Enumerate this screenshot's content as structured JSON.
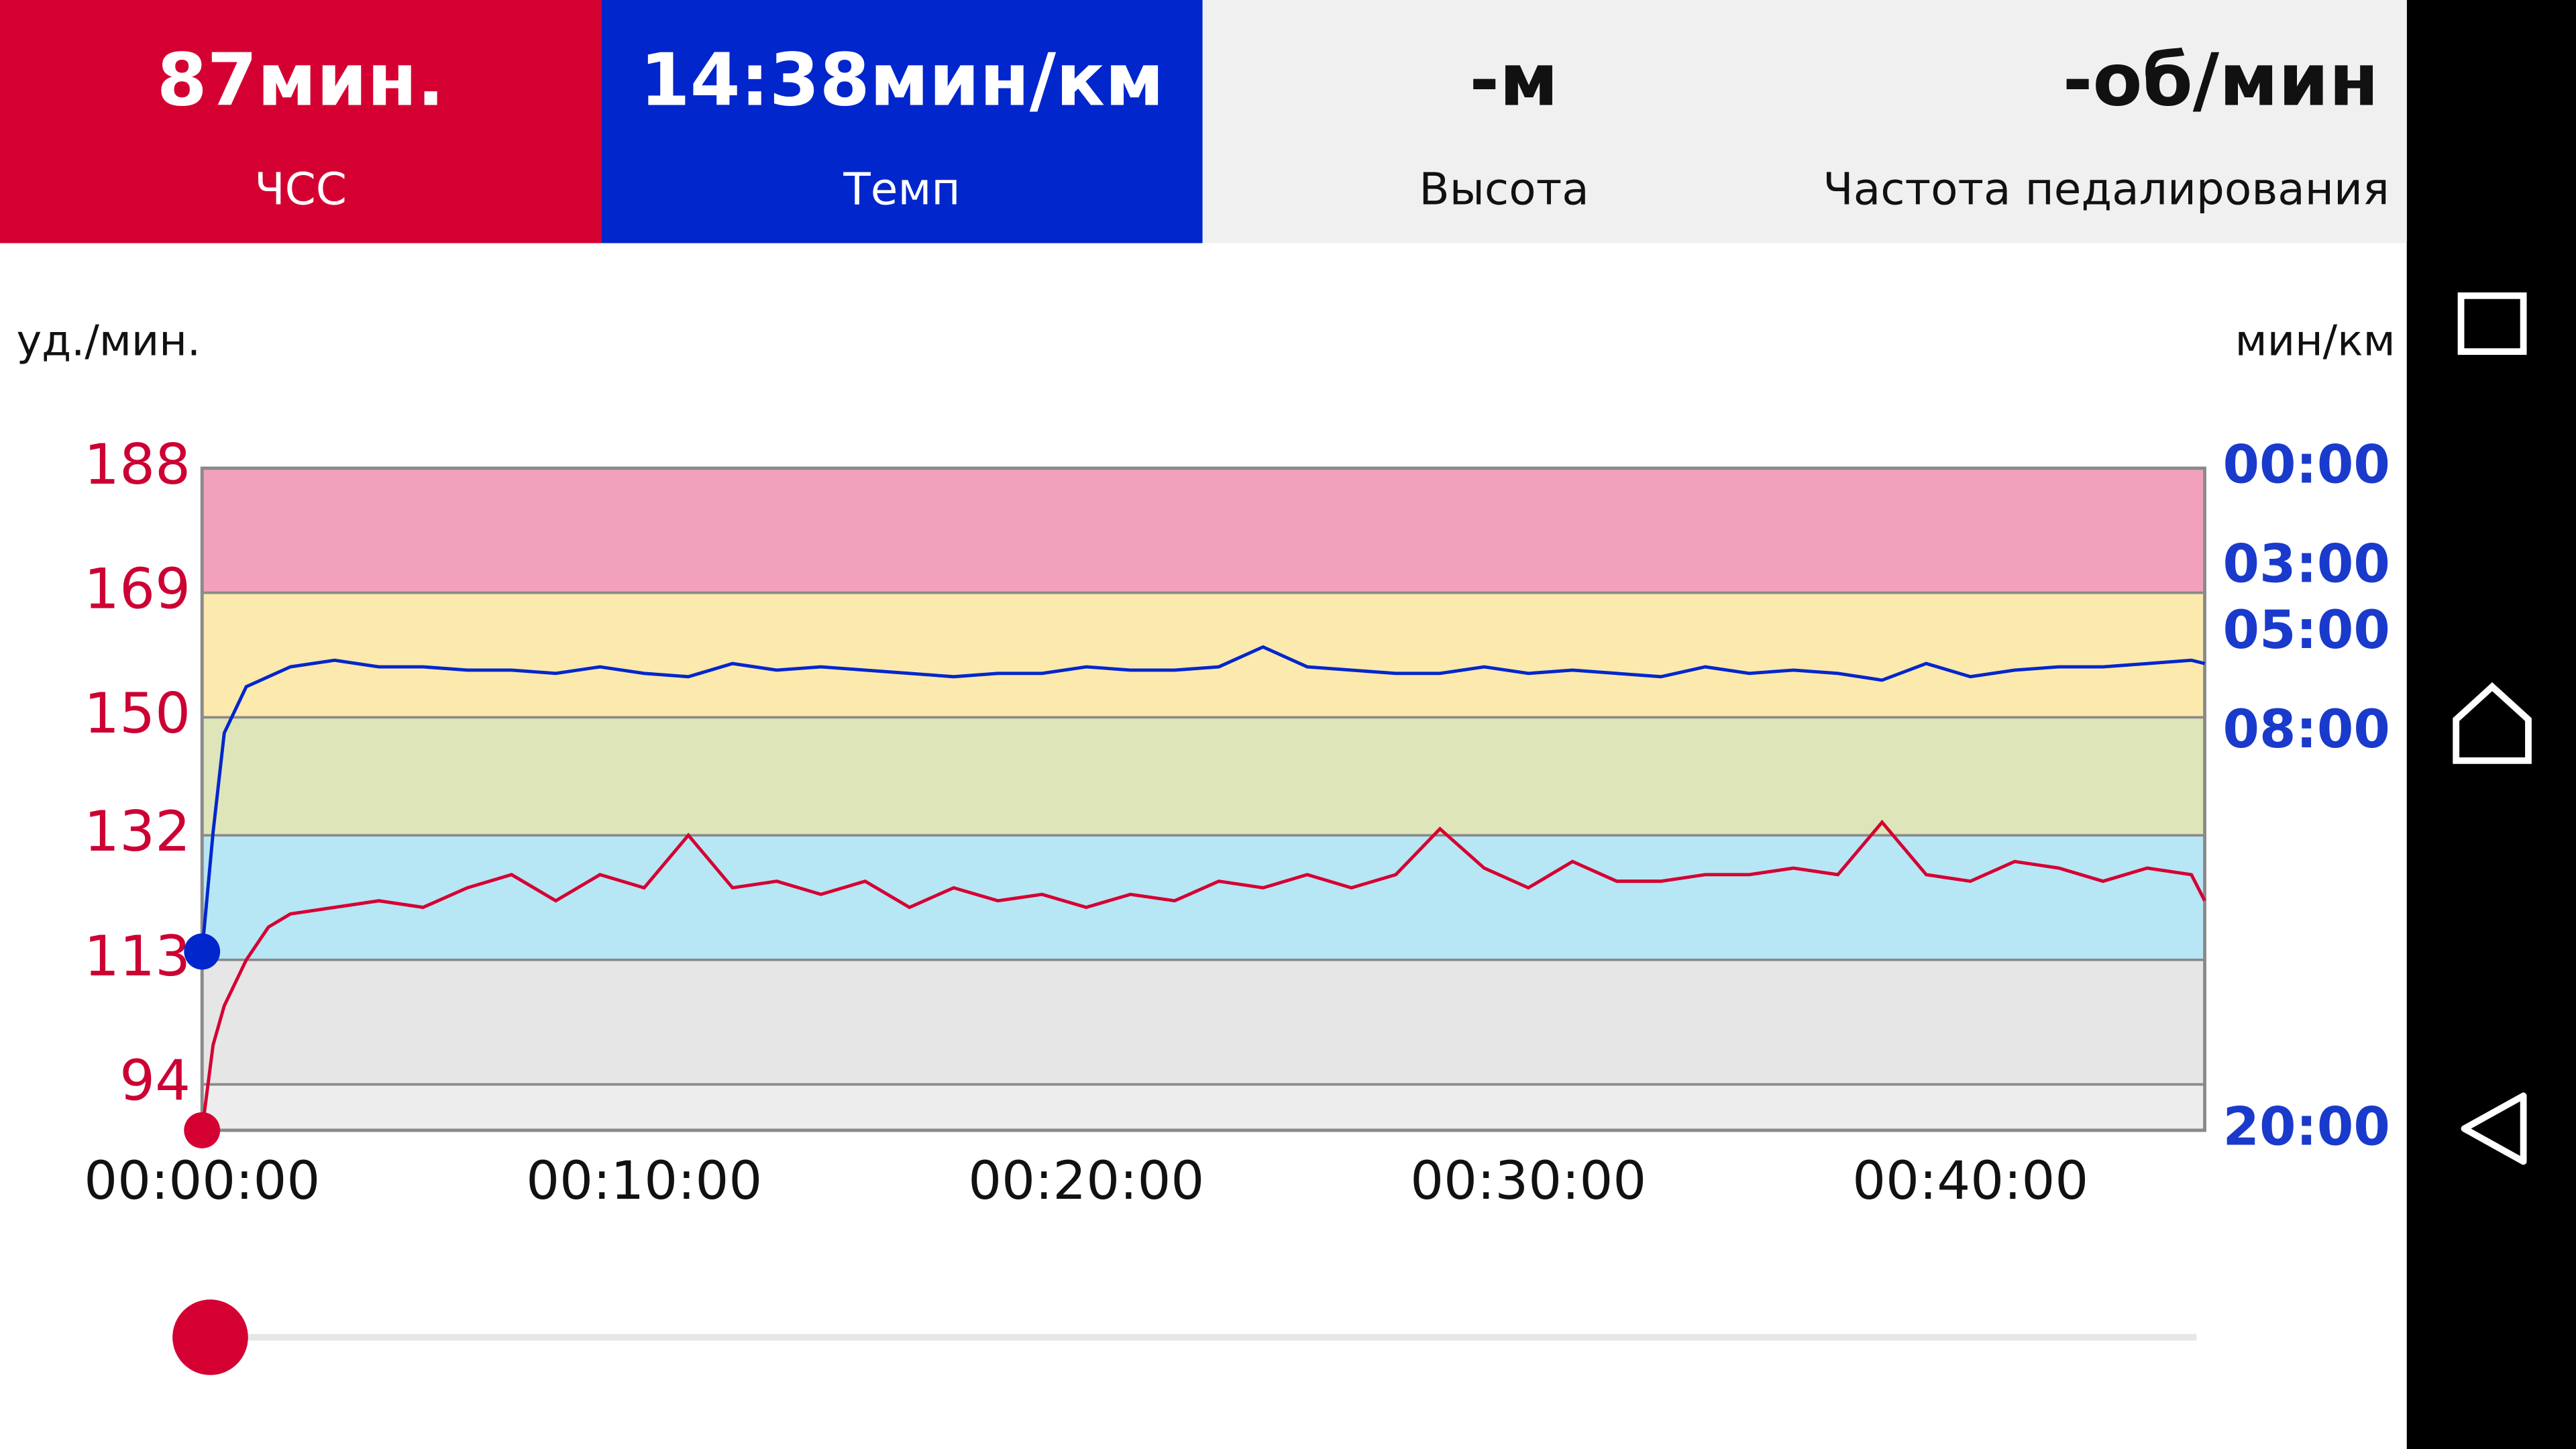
{
  "header": {
    "tiles": [
      {
        "value": "87мин.",
        "label": "ЧСС",
        "color": "#d50032"
      },
      {
        "value": "14:38мин/км",
        "label": "Темп",
        "color": "#0026cc"
      },
      {
        "value": "-м",
        "label": "Высота",
        "color": "#f0f0f0"
      },
      {
        "value": "-об/мин",
        "label": "Частота педалирования",
        "color": "#f0f0f0"
      }
    ]
  },
  "chart_data": {
    "type": "line",
    "y_label": "уд./мин.",
    "y2_label": "мин/км",
    "x": [
      0,
      0.25,
      0.5,
      1,
      1.5,
      2,
      3,
      4,
      5,
      6,
      7,
      8,
      9,
      10,
      11,
      12,
      13,
      14,
      15,
      16,
      17,
      18,
      19,
      20,
      21,
      22,
      23,
      24,
      25,
      26,
      27,
      28,
      29,
      30,
      31,
      32,
      33,
      34,
      35,
      36,
      37,
      38,
      39,
      40,
      41,
      42,
      43,
      44,
      45,
      45.3
    ],
    "xlim": [
      0,
      45.3
    ],
    "xticks": [
      {
        "value": 0,
        "label": "00:00:00"
      },
      {
        "value": 10,
        "label": "00:10:00"
      },
      {
        "value": 20,
        "label": "00:20:00"
      },
      {
        "value": 30,
        "label": "00:30:00"
      },
      {
        "value": 40,
        "label": "00:40:00"
      }
    ],
    "ylim": [
      87,
      188
    ],
    "yticks": [
      94,
      113,
      132,
      150,
      169,
      188
    ],
    "zone_colors": [
      "#ededed",
      "#e6e6e6",
      "#b7e6f5",
      "#dde5b9",
      "#fce9ad",
      "#f2a1bd"
    ],
    "y2lim": [
      20,
      0
    ],
    "y2ticks": [
      {
        "value": 0,
        "label": "00:00"
      },
      {
        "value": 3,
        "label": "03:00"
      },
      {
        "value": 5,
        "label": "05:00"
      },
      {
        "value": 8,
        "label": "08:00"
      },
      {
        "value": 20,
        "label": "20:00"
      }
    ],
    "series": [
      {
        "color": "#d50032",
        "values": [
          87,
          100,
          106,
          113,
          118,
          120,
          121,
          122,
          121,
          124,
          126,
          122,
          126,
          124,
          132,
          124,
          125,
          123,
          125,
          121,
          124,
          122,
          123,
          121,
          123,
          122,
          125,
          124,
          126,
          124,
          126,
          133,
          127,
          124,
          128,
          125,
          125,
          126,
          126,
          127,
          126,
          134,
          126,
          125,
          128,
          127,
          125,
          127,
          126,
          122
        ]
      },
      {
        "color": "#0026cc",
        "axis": "y2",
        "values": [
          14.6,
          11,
          8,
          6.6,
          6.3,
          6.0,
          5.8,
          6.0,
          6.0,
          6.1,
          6.1,
          6.2,
          6.0,
          6.2,
          6.3,
          5.9,
          6.1,
          6.0,
          6.1,
          6.2,
          6.3,
          6.2,
          6.2,
          6.0,
          6.1,
          6.1,
          6.0,
          5.4,
          6.0,
          6.1,
          6.2,
          6.2,
          6.0,
          6.2,
          6.1,
          6.2,
          6.3,
          6.0,
          6.2,
          6.1,
          6.2,
          6.4,
          5.9,
          6.3,
          6.1,
          6.0,
          6.0,
          5.9,
          5.8,
          5.9
        ]
      }
    ]
  }
}
